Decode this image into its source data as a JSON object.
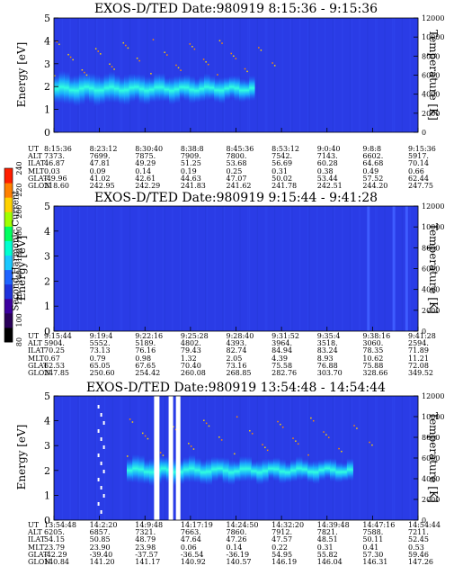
{
  "colorbar": {
    "label": "Second Harmonic Current",
    "ticks": [
      "80",
      "100",
      "120",
      "140",
      "160",
      "180",
      "200",
      "220",
      "240"
    ],
    "stops": [
      "#000000",
      "#2a005a",
      "#3c00a0",
      "#1e32dc",
      "#1e64ff",
      "#19c8ff",
      "#00ffd0",
      "#00ff60",
      "#a0ff00",
      "#ffd200",
      "#ff8000",
      "#ff1e00"
    ]
  },
  "chart_data": [
    {
      "type": "heatmap",
      "title": "EXOS-D/TED   Date:980919   8:15:36 - 9:15:36",
      "ylabel": "Energy [eV]",
      "y2label": "Temperature [K]",
      "ylim": [
        0,
        5
      ],
      "y2lim": [
        0,
        12000
      ],
      "yticks": [
        "0",
        "1",
        "2",
        "3",
        "4",
        "5"
      ],
      "y2ticks": [
        "0",
        "2000",
        "4000",
        "6000",
        "8000",
        "10000",
        "12000"
      ],
      "table_rows": [
        {
          "name": "UT",
          "values": [
            "8:15:36",
            "8:23:12",
            "8:30:40",
            "8:38:8",
            "8:45:36",
            "8:53:12",
            "9:0:40",
            "9:8:8",
            "9:15:36"
          ]
        },
        {
          "name": "ALT",
          "values": [
            "7373.",
            "7699.",
            "7875.",
            "7909.",
            "7800.",
            "7542.",
            "7143.",
            "6602.",
            "5917."
          ]
        },
        {
          "name": "ILAT",
          "values": [
            "46.87",
            "47.81",
            "49.29",
            "51.25",
            "53.68",
            "56.69",
            "60.28",
            "64.68",
            "70.14"
          ]
        },
        {
          "name": "MLT",
          "values": [
            "0.03",
            "0.09",
            "0.14",
            "0.19",
            "0.25",
            "0.31",
            "0.38",
            "0.49",
            "0.66"
          ]
        },
        {
          "name": "GLAT",
          "values": [
            "-49.96",
            "41.02",
            "42.61",
            "44.63",
            "47.07",
            "50.02",
            "53.44",
            "57.52",
            "62.44"
          ]
        },
        {
          "name": "GLON",
          "values": [
            "218.60",
            "242.95",
            "242.29",
            "241.83",
            "241.62",
            "241.78",
            "242.51",
            "244.20",
            "247.75"
          ]
        }
      ]
    },
    {
      "type": "heatmap",
      "title": "EXOS-D/TED   Date:980919   9:15:44 - 9:41:28",
      "ylabel": "Energy [eV]",
      "y2label": "Temperature [K]",
      "ylim": [
        0,
        5
      ],
      "y2lim": [
        0,
        12000
      ],
      "yticks": [
        "0",
        "1",
        "2",
        "3",
        "4",
        "5"
      ],
      "y2ticks": [
        "0",
        "2000",
        "4000",
        "6000",
        "8000",
        "10000",
        "12000"
      ],
      "table_rows": [
        {
          "name": "UT",
          "values": [
            "9:15:44",
            "9:19:4",
            "9:22:16",
            "9:25:28",
            "9:28:40",
            "9:31:52",
            "9:35:4",
            "9:38:16",
            "9:41:28"
          ]
        },
        {
          "name": "ALT",
          "values": [
            "5904.",
            "5552.",
            "5189.",
            "4802.",
            "4393.",
            "3964.",
            "3518.",
            "3060.",
            "2594."
          ]
        },
        {
          "name": "ILAT",
          "values": [
            "70.25",
            "73.13",
            "76.16",
            "79.43",
            "82.74",
            "84.94",
            "83.24",
            "78.35",
            "71.89"
          ]
        },
        {
          "name": "MLT",
          "values": [
            "0.67",
            "0.79",
            "0.98",
            "1.32",
            "2.05",
            "4.39",
            "8.93",
            "10.62",
            "11.21"
          ]
        },
        {
          "name": "GLAT",
          "values": [
            "62.53",
            "65.05",
            "67.65",
            "70.40",
            "73.16",
            "75.58",
            "76.88",
            "75.88",
            "72.08"
          ]
        },
        {
          "name": "GLON",
          "values": [
            "247.85",
            "250.60",
            "254.42",
            "260.08",
            "268.85",
            "282.76",
            "303.70",
            "328.66",
            "349.52"
          ]
        }
      ]
    },
    {
      "type": "heatmap",
      "title": "EXOS-D/TED   Date:980919   13:54:48 - 14:54:44",
      "ylabel": "Energy [eV]",
      "y2label": "Temperature [K]",
      "ylim": [
        0,
        5
      ],
      "y2lim": [
        0,
        12000
      ],
      "yticks": [
        "0",
        "1",
        "2",
        "3",
        "4",
        "5"
      ],
      "y2ticks": [
        "0",
        "2000",
        "4000",
        "6000",
        "8000",
        "10000",
        "12000"
      ],
      "table_rows": [
        {
          "name": "UT",
          "values": [
            "13:54:48",
            "14:2:20",
            "14:9:48",
            "14:17:19",
            "14:24:50",
            "14:32:20",
            "14:39:48",
            "14:47:16",
            "14:54:44"
          ]
        },
        {
          "name": "ALT",
          "values": [
            "6205.",
            "6857.",
            "7321.",
            "7663.",
            "7860.",
            "7912.",
            "7821.",
            "7588.",
            "7211."
          ]
        },
        {
          "name": "ILAT",
          "values": [
            "54.15",
            "50.85",
            "48.79",
            "47.64",
            "47.26",
            "47.57",
            "48.51",
            "50.11",
            "52.45"
          ]
        },
        {
          "name": "MLT",
          "values": [
            "23.79",
            "23.90",
            "23.98",
            "0.06",
            "0.14",
            "0.22",
            "0.31",
            "0.41",
            "0.53"
          ]
        },
        {
          "name": "GLAT",
          "values": [
            "-42.29",
            "-39.40",
            "-37.57",
            "-36.54",
            "-36.19",
            "54.95",
            "55.82",
            "57.30",
            "59.46"
          ]
        },
        {
          "name": "GLON",
          "values": [
            "140.84",
            "141.20",
            "141.17",
            "140.92",
            "140.57",
            "146.19",
            "146.04",
            "146.31",
            "147.26"
          ]
        }
      ]
    }
  ]
}
